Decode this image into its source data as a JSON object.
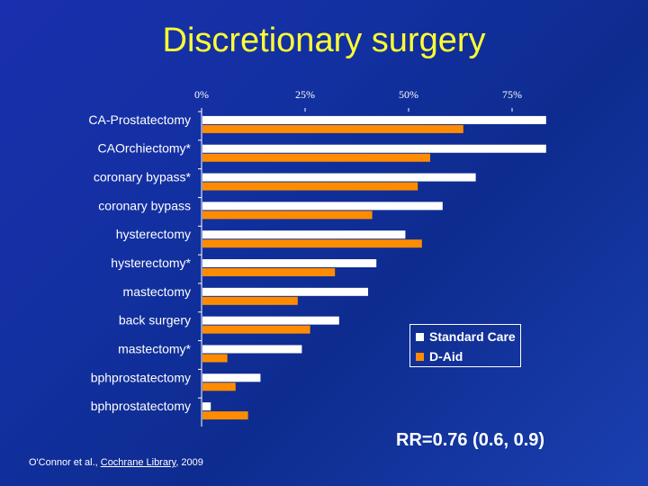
{
  "slide": {
    "title": "Discretionary surgery",
    "rr_note": "RR=0.76 (0.6, 0.9)",
    "citation": {
      "authors": "O'Connor et al., ",
      "journal": "Cochrane Library",
      "year": ", 2009"
    }
  },
  "chart_data": {
    "type": "bar",
    "orientation": "horizontal",
    "title": "",
    "xlabel": "",
    "ylabel": "",
    "xlim": [
      0,
      100
    ],
    "x_ticks": [
      0,
      25,
      50,
      75
    ],
    "x_tick_labels": [
      "0%",
      "25%",
      "50%",
      "75%"
    ],
    "categories": [
      "CA-Prostatectomy",
      "CAOrchiectomy*",
      "coronary bypass*",
      "coronary bypass",
      "hysterectomy",
      "hysterectomy*",
      "mastectomy",
      "back surgery",
      "mastectomy*",
      "bphprostatectomy",
      "bphprostatectomy"
    ],
    "series": [
      {
        "name": "Standard Care",
        "color": "#ffffff",
        "values": [
          83,
          83,
          66,
          58,
          49,
          42,
          40,
          33,
          24,
          14,
          2
        ]
      },
      {
        "name": "D-Aid",
        "color": "#ff8c00",
        "values": [
          63,
          55,
          52,
          41,
          53,
          32,
          23,
          26,
          6,
          8,
          11
        ]
      }
    ],
    "legend_position": "bottom-right",
    "grid": false
  }
}
